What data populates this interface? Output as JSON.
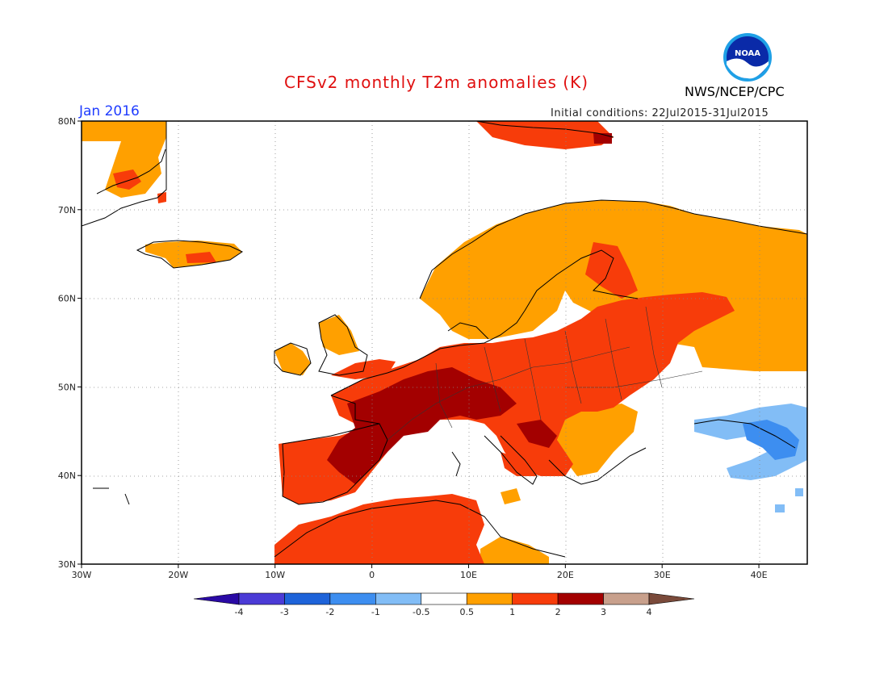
{
  "title": "CFSv2 monthly T2m anomalies (K)",
  "month": "Jan 2016",
  "initial_conditions": "Initial conditions: 22Jul2015-31Jul2015",
  "agency": "NWS/NCEP/CPC",
  "logo": {
    "text": "NOAA",
    "icon": "noaa-logo-icon"
  },
  "map": {
    "lon_range": [
      -30,
      45
    ],
    "lat_range": [
      30,
      80
    ],
    "x_ticks": [
      "30W",
      "20W",
      "10W",
      "0",
      "10E",
      "20E",
      "30E",
      "40E"
    ],
    "y_ticks": [
      "80N",
      "70N",
      "60N",
      "50N",
      "40N",
      "30N"
    ],
    "grid": "dotted"
  },
  "colorbar": {
    "labels": [
      "-4",
      "-3",
      "-2",
      "-1",
      "-0.5",
      "0.5",
      "1",
      "2",
      "3",
      "4"
    ],
    "colors": [
      "#2a0aa5",
      "#4b3bd6",
      "#1e63d9",
      "#3d8ef0",
      "#82bdf6",
      "#ffffff",
      "#ffa000",
      "#f73c0a",
      "#a30000",
      "#c8a08c",
      "#7a4a3a"
    ]
  }
}
